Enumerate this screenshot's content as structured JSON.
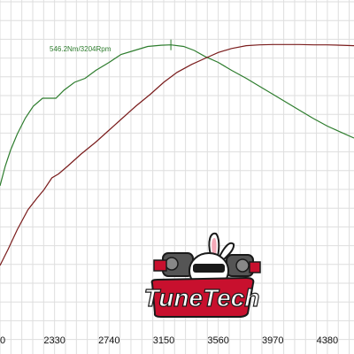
{
  "chart_data": {
    "type": "line",
    "title": "",
    "xlabel": "",
    "ylabel": "",
    "x_ticks": [
      "2330",
      "2740",
      "3150",
      "3560",
      "3970",
      "4380"
    ],
    "x_tick_values": [
      2330,
      2740,
      3150,
      3560,
      3970,
      4380
    ],
    "xlim": [
      1920,
      4580
    ],
    "grid": true,
    "annotation": {
      "text": "546.2Nm/3204Rpm",
      "x": 3204,
      "series": "torque",
      "marker": "vertical tick at peak"
    },
    "series": [
      {
        "key": "torque",
        "color": "#2e7d2e",
        "points": [
          [
            1920,
            36
          ],
          [
            1960,
            41
          ],
          [
            2000,
            45
          ],
          [
            2050,
            49
          ],
          [
            2110,
            53
          ],
          [
            2170,
            56
          ],
          [
            2240,
            58
          ],
          [
            2310,
            58
          ],
          [
            2340,
            58
          ],
          [
            2400,
            60
          ],
          [
            2480,
            62
          ],
          [
            2560,
            63
          ],
          [
            2640,
            65
          ],
          [
            2740,
            67
          ],
          [
            2830,
            69
          ],
          [
            2930,
            70
          ],
          [
            3030,
            71
          ],
          [
            3130,
            71.3
          ],
          [
            3204,
            71.4
          ],
          [
            3300,
            71
          ],
          [
            3380,
            70
          ],
          [
            3460,
            68.5
          ],
          [
            3560,
            67
          ],
          [
            3660,
            65
          ],
          [
            3770,
            63
          ],
          [
            3870,
            61
          ],
          [
            3970,
            59
          ],
          [
            4070,
            57
          ],
          [
            4170,
            55
          ],
          [
            4270,
            53
          ],
          [
            4380,
            51
          ],
          [
            4480,
            49.5
          ],
          [
            4580,
            48
          ]
        ]
      },
      {
        "key": "power",
        "color": "#7a1c1c",
        "points": [
          [
            1920,
            16
          ],
          [
            1980,
            20
          ],
          [
            2050,
            25
          ],
          [
            2130,
            30
          ],
          [
            2200,
            33
          ],
          [
            2250,
            35
          ],
          [
            2310,
            38
          ],
          [
            2360,
            39
          ],
          [
            2430,
            41
          ],
          [
            2530,
            44
          ],
          [
            2640,
            47
          ],
          [
            2740,
            50
          ],
          [
            2840,
            53
          ],
          [
            2940,
            56
          ],
          [
            3050,
            59
          ],
          [
            3150,
            62
          ],
          [
            3250,
            64.5
          ],
          [
            3360,
            66.5
          ],
          [
            3460,
            68
          ],
          [
            3560,
            69.5
          ],
          [
            3660,
            70.5
          ],
          [
            3770,
            71.2
          ],
          [
            3870,
            71.4
          ],
          [
            3970,
            71.5
          ],
          [
            4070,
            71.5
          ],
          [
            4170,
            71.5
          ],
          [
            4280,
            71.4
          ],
          [
            4380,
            71.4
          ],
          [
            4480,
            71.3
          ],
          [
            4580,
            71.2
          ]
        ]
      }
    ]
  },
  "logo": {
    "text": "TuneTech",
    "colors": {
      "red": "#c8102e",
      "dark": "#1a1a1a",
      "white": "#ffffff"
    }
  }
}
